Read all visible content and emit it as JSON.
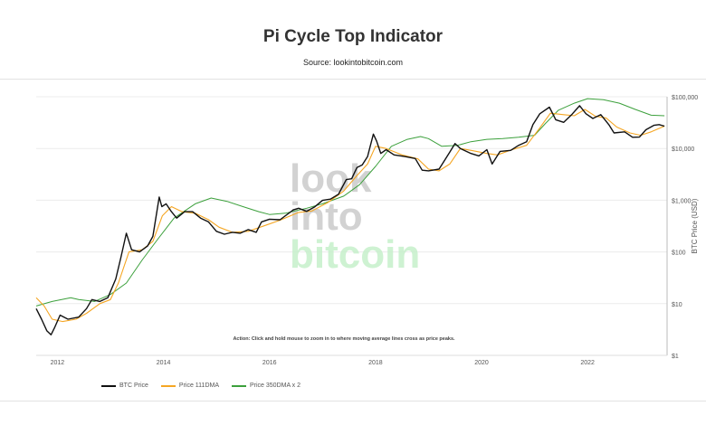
{
  "header": {
    "title": "Pi Cycle Top Indicator",
    "subtitle": "Source: lookintobitcoin.com"
  },
  "chart_data": {
    "type": "line",
    "title": "Pi Cycle Top Indicator",
    "ylabel": "BTC Price (USD)",
    "yscale": "log",
    "ylim": [
      1,
      100000
    ],
    "xlim": [
      2011.6,
      2023.5
    ],
    "x_ticks": [
      "2012",
      "2014",
      "2016",
      "2018",
      "2020",
      "2022"
    ],
    "y_ticks": [
      "$1",
      "$10",
      "$100",
      "$1,000",
      "$10,000",
      "$100,000"
    ],
    "y_tick_values": [
      1,
      10,
      100,
      1000,
      10000,
      100000
    ],
    "annotation": "Action: Click and hold mouse to zoom in to where moving average lines cross as price peaks.",
    "watermark": [
      "look",
      "into",
      "bitcoin"
    ],
    "grid": true,
    "legend_position": "bottom-left",
    "colors": {
      "btc": "#111111",
      "ma111": "#f5a623",
      "ma350x2": "#3ca03c"
    },
    "series": [
      {
        "name": "BTC Price",
        "key": "btc",
        "points": [
          [
            2011.6,
            8
          ],
          [
            2011.7,
            5
          ],
          [
            2011.8,
            3
          ],
          [
            2011.88,
            2.5
          ],
          [
            2011.95,
            3.5
          ],
          [
            2012.05,
            6
          ],
          [
            2012.2,
            5
          ],
          [
            2012.4,
            5.5
          ],
          [
            2012.55,
            8
          ],
          [
            2012.65,
            12
          ],
          [
            2012.8,
            11
          ],
          [
            2012.95,
            13
          ],
          [
            2013.1,
            30
          ],
          [
            2013.2,
            80
          ],
          [
            2013.3,
            230
          ],
          [
            2013.4,
            110
          ],
          [
            2013.55,
            100
          ],
          [
            2013.7,
            130
          ],
          [
            2013.8,
            200
          ],
          [
            2013.92,
            1150
          ],
          [
            2013.97,
            750
          ],
          [
            2014.05,
            850
          ],
          [
            2014.15,
            600
          ],
          [
            2014.25,
            450
          ],
          [
            2014.4,
            600
          ],
          [
            2014.55,
            600
          ],
          [
            2014.7,
            450
          ],
          [
            2014.85,
            380
          ],
          [
            2015.0,
            250
          ],
          [
            2015.15,
            220
          ],
          [
            2015.3,
            240
          ],
          [
            2015.45,
            230
          ],
          [
            2015.6,
            270
          ],
          [
            2015.75,
            240
          ],
          [
            2015.85,
            380
          ],
          [
            2016.0,
            430
          ],
          [
            2016.2,
            420
          ],
          [
            2016.45,
            650
          ],
          [
            2016.55,
            700
          ],
          [
            2016.7,
            610
          ],
          [
            2016.85,
            740
          ],
          [
            2017.0,
            990
          ],
          [
            2017.15,
            1050
          ],
          [
            2017.3,
            1300
          ],
          [
            2017.45,
            2500
          ],
          [
            2017.55,
            2600
          ],
          [
            2017.65,
            4300
          ],
          [
            2017.75,
            4800
          ],
          [
            2017.85,
            7000
          ],
          [
            2017.96,
            19000
          ],
          [
            2018.02,
            14000
          ],
          [
            2018.1,
            8000
          ],
          [
            2018.2,
            9500
          ],
          [
            2018.35,
            7500
          ],
          [
            2018.55,
            7000
          ],
          [
            2018.75,
            6400
          ],
          [
            2018.88,
            3800
          ],
          [
            2019.0,
            3700
          ],
          [
            2019.2,
            4000
          ],
          [
            2019.4,
            8500
          ],
          [
            2019.5,
            12500
          ],
          [
            2019.6,
            10000
          ],
          [
            2019.8,
            8000
          ],
          [
            2019.95,
            7200
          ],
          [
            2020.1,
            9500
          ],
          [
            2020.2,
            5000
          ],
          [
            2020.35,
            8800
          ],
          [
            2020.55,
            9200
          ],
          [
            2020.7,
            11500
          ],
          [
            2020.85,
            13500
          ],
          [
            2020.97,
            29000
          ],
          [
            2021.1,
            47000
          ],
          [
            2021.28,
            63000
          ],
          [
            2021.4,
            36000
          ],
          [
            2021.55,
            32000
          ],
          [
            2021.7,
            45000
          ],
          [
            2021.85,
            67000
          ],
          [
            2021.97,
            47000
          ],
          [
            2022.1,
            38000
          ],
          [
            2022.25,
            45000
          ],
          [
            2022.4,
            29000
          ],
          [
            2022.5,
            20000
          ],
          [
            2022.7,
            21000
          ],
          [
            2022.85,
            16500
          ],
          [
            2022.98,
            16600
          ],
          [
            2023.1,
            23000
          ],
          [
            2023.25,
            28000
          ],
          [
            2023.35,
            29000
          ],
          [
            2023.45,
            27000
          ]
        ]
      },
      {
        "name": "Price 111DMA",
        "key": "ma111",
        "points": [
          [
            2011.6,
            13
          ],
          [
            2011.75,
            9
          ],
          [
            2011.9,
            5
          ],
          [
            2012.1,
            4.5
          ],
          [
            2012.35,
            5
          ],
          [
            2012.55,
            6.5
          ],
          [
            2012.8,
            10
          ],
          [
            2013.0,
            12
          ],
          [
            2013.15,
            25
          ],
          [
            2013.35,
            100
          ],
          [
            2013.6,
            110
          ],
          [
            2013.8,
            160
          ],
          [
            2013.98,
            500
          ],
          [
            2014.15,
            750
          ],
          [
            2014.35,
            600
          ],
          [
            2014.6,
            560
          ],
          [
            2014.85,
            420
          ],
          [
            2015.05,
            300
          ],
          [
            2015.3,
            240
          ],
          [
            2015.6,
            250
          ],
          [
            2015.9,
            320
          ],
          [
            2016.2,
            410
          ],
          [
            2016.55,
            580
          ],
          [
            2016.8,
            620
          ],
          [
            2017.1,
            900
          ],
          [
            2017.4,
            1500
          ],
          [
            2017.65,
            3000
          ],
          [
            2017.85,
            5000
          ],
          [
            2018.0,
            11000
          ],
          [
            2018.2,
            10000
          ],
          [
            2018.5,
            7500
          ],
          [
            2018.8,
            6300
          ],
          [
            2019.0,
            4000
          ],
          [
            2019.2,
            3700
          ],
          [
            2019.4,
            5000
          ],
          [
            2019.6,
            10000
          ],
          [
            2019.85,
            9000
          ],
          [
            2020.1,
            8000
          ],
          [
            2020.3,
            7500
          ],
          [
            2020.55,
            9300
          ],
          [
            2020.85,
            11500
          ],
          [
            2021.1,
            25000
          ],
          [
            2021.3,
            48000
          ],
          [
            2021.55,
            45000
          ],
          [
            2021.75,
            43000
          ],
          [
            2021.95,
            57000
          ],
          [
            2022.15,
            42000
          ],
          [
            2022.35,
            39000
          ],
          [
            2022.55,
            26000
          ],
          [
            2022.8,
            20000
          ],
          [
            2023.0,
            18000
          ],
          [
            2023.2,
            21000
          ],
          [
            2023.45,
            27000
          ]
        ]
      },
      {
        "name": "Price 350DMA x 2",
        "key": "ma350x2",
        "points": [
          [
            2011.6,
            9
          ],
          [
            2011.9,
            11
          ],
          [
            2012.25,
            13
          ],
          [
            2012.4,
            12
          ],
          [
            2012.7,
            11
          ],
          [
            2013.0,
            15
          ],
          [
            2013.3,
            25
          ],
          [
            2013.6,
            70
          ],
          [
            2013.9,
            180
          ],
          [
            2014.2,
            450
          ],
          [
            2014.6,
            850
          ],
          [
            2014.9,
            1100
          ],
          [
            2015.2,
            950
          ],
          [
            2015.5,
            750
          ],
          [
            2015.8,
            600
          ],
          [
            2016.0,
            530
          ],
          [
            2016.3,
            560
          ],
          [
            2016.7,
            700
          ],
          [
            2017.0,
            850
          ],
          [
            2017.4,
            1200
          ],
          [
            2017.7,
            2000
          ],
          [
            2018.0,
            4500
          ],
          [
            2018.3,
            11000
          ],
          [
            2018.6,
            15000
          ],
          [
            2018.85,
            17000
          ],
          [
            2019.0,
            15500
          ],
          [
            2019.25,
            11000
          ],
          [
            2019.55,
            11500
          ],
          [
            2019.8,
            13500
          ],
          [
            2020.1,
            15000
          ],
          [
            2020.4,
            15500
          ],
          [
            2020.7,
            16500
          ],
          [
            2021.0,
            18000
          ],
          [
            2021.2,
            30000
          ],
          [
            2021.45,
            55000
          ],
          [
            2021.75,
            75000
          ],
          [
            2022.0,
            92000
          ],
          [
            2022.3,
            88000
          ],
          [
            2022.6,
            75000
          ],
          [
            2022.9,
            57000
          ],
          [
            2023.2,
            44000
          ],
          [
            2023.45,
            43000
          ]
        ]
      }
    ]
  }
}
